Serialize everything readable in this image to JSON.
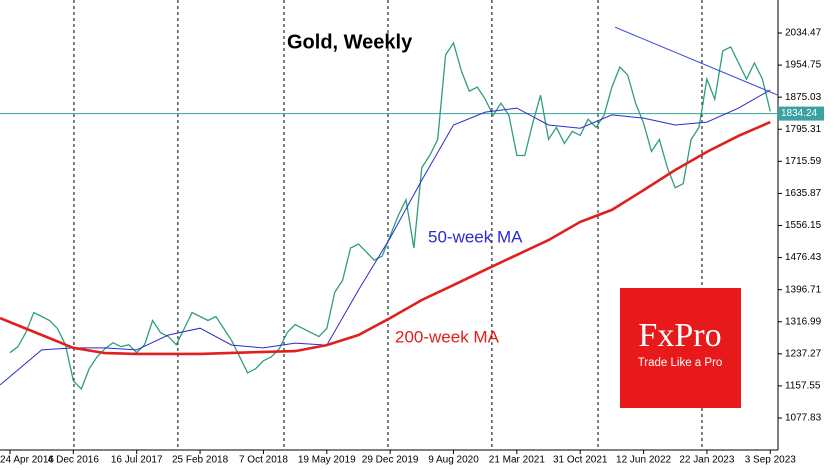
{
  "chart_data": {
    "type": "line",
    "title": "Gold, Weekly",
    "xlim": [
      -5.05,
      387.9
    ],
    "ylim": [
      998.3,
      2116.5
    ],
    "xticks": [
      {
        "value": 0,
        "label": "24 Apr 2016"
      },
      {
        "value": 32,
        "label": "4 Dec 2016"
      },
      {
        "value": 64,
        "label": "16 Jul 2017"
      },
      {
        "value": 96,
        "label": "25 Feb 2018"
      },
      {
        "value": 128,
        "label": "7 Oct 2018"
      },
      {
        "value": 160,
        "label": "19 May 2019"
      },
      {
        "value": 192,
        "label": "29 Dec 2019"
      },
      {
        "value": 224,
        "label": "9 Aug 2020"
      },
      {
        "value": 256,
        "label": "21 Mar 2021"
      },
      {
        "value": 288,
        "label": "31 Oct 2021"
      },
      {
        "value": 320,
        "label": "12 Jun 2022"
      },
      {
        "value": 352,
        "label": "22 Jan 2023"
      },
      {
        "value": 384,
        "label": "3 Sep 2023"
      }
    ],
    "yticks": [
      2034.47,
      1954.75,
      1875.03,
      1795.31,
      1715.59,
      1635.87,
      1556.15,
      1476.43,
      1396.71,
      1316.99,
      1237.27,
      1157.55,
      1077.83
    ],
    "vlines": [
      32.3,
      84.8,
      138.4,
      190.9,
      243.4,
      297,
      349.5
    ],
    "series": [
      {
        "color": "#2f9e7c",
        "width": 1.3,
        "x": [
          0,
          4,
          8,
          12,
          16,
          20,
          24,
          28,
          32,
          36,
          40,
          44,
          48,
          52,
          56,
          60,
          64,
          68,
          72,
          76,
          80,
          84,
          88,
          92,
          96,
          100,
          104,
          108,
          112,
          116,
          120,
          124,
          128,
          132,
          136,
          140,
          144,
          148,
          152,
          156,
          160,
          164,
          168,
          172,
          176,
          180,
          184,
          188,
          192,
          196,
          200,
          204,
          208,
          212,
          216,
          220,
          224,
          228,
          232,
          236,
          240,
          244,
          248,
          252,
          256,
          260,
          264,
          268,
          272,
          276,
          280,
          284,
          288,
          292,
          296,
          300,
          304,
          308,
          312,
          316,
          320,
          324,
          328,
          332,
          336,
          340,
          344,
          348,
          352,
          356,
          360,
          364,
          368,
          372,
          376,
          380,
          384
        ],
        "values": [
          1240,
          1255,
          1290,
          1340,
          1330,
          1320,
          1300,
          1260,
          1170,
          1150,
          1200,
          1230,
          1250,
          1265,
          1255,
          1260,
          1240,
          1260,
          1320,
          1290,
          1280,
          1260,
          1300,
          1340,
          1330,
          1320,
          1330,
          1300,
          1270,
          1230,
          1190,
          1200,
          1220,
          1230,
          1250,
          1290,
          1310,
          1300,
          1290,
          1280,
          1300,
          1390,
          1420,
          1500,
          1510,
          1490,
          1470,
          1480,
          1530,
          1580,
          1620,
          1500,
          1700,
          1730,
          1770,
          1980,
          2010,
          1940,
          1890,
          1900,
          1870,
          1830,
          1860,
          1830,
          1730,
          1730,
          1810,
          1880,
          1770,
          1800,
          1760,
          1790,
          1780,
          1820,
          1800,
          1830,
          1900,
          1950,
          1930,
          1860,
          1810,
          1740,
          1770,
          1700,
          1650,
          1660,
          1770,
          1800,
          1920,
          1870,
          1990,
          2000,
          1960,
          1920,
          1960,
          1920,
          1840
        ]
      },
      {
        "name": "50-week MA",
        "color": "#2b2bd0",
        "width": 1,
        "x": [
          -5,
          16,
          32,
          48,
          64,
          80,
          96,
          112,
          128,
          144,
          160,
          176,
          192,
          208,
          224,
          240,
          256,
          272,
          288,
          304,
          320,
          336,
          352,
          368,
          384
        ],
        "values": [
          1160,
          1247,
          1252,
          1252,
          1247,
          1284,
          1301,
          1259,
          1252,
          1264,
          1259,
          1396,
          1525,
          1669,
          1806,
          1838,
          1848,
          1806,
          1798,
          1831,
          1823,
          1806,
          1813,
          1848,
          1893
        ]
      },
      {
        "name": "200-week MA",
        "color": "#e0201c",
        "width": 2.6,
        "x": [
          -5,
          16,
          32,
          48,
          64,
          96,
          128,
          144,
          160,
          176,
          192,
          208,
          224,
          240,
          256,
          272,
          288,
          304,
          320,
          336,
          352,
          368,
          384
        ],
        "values": [
          1326,
          1284,
          1252,
          1239,
          1237,
          1237,
          1242,
          1244,
          1259,
          1284,
          1326,
          1371,
          1408,
          1446,
          1483,
          1520,
          1565,
          1595,
          1644,
          1694,
          1739,
          1779,
          1813
        ]
      },
      {
        "color": "#3344dd",
        "width": 1,
        "x": [
          305.6,
          387.9
        ],
        "values": [
          2049,
          1880
        ]
      }
    ],
    "hline": {
      "value": 1834.24,
      "color": "#3aa0a0"
    },
    "annotations": [
      {
        "text": "50-week MA",
        "series": 1
      },
      {
        "text": "200-week MA",
        "series": 2
      }
    ],
    "logo": {
      "brand": "FxPro",
      "tagline": "Trade Like a Pro"
    }
  }
}
